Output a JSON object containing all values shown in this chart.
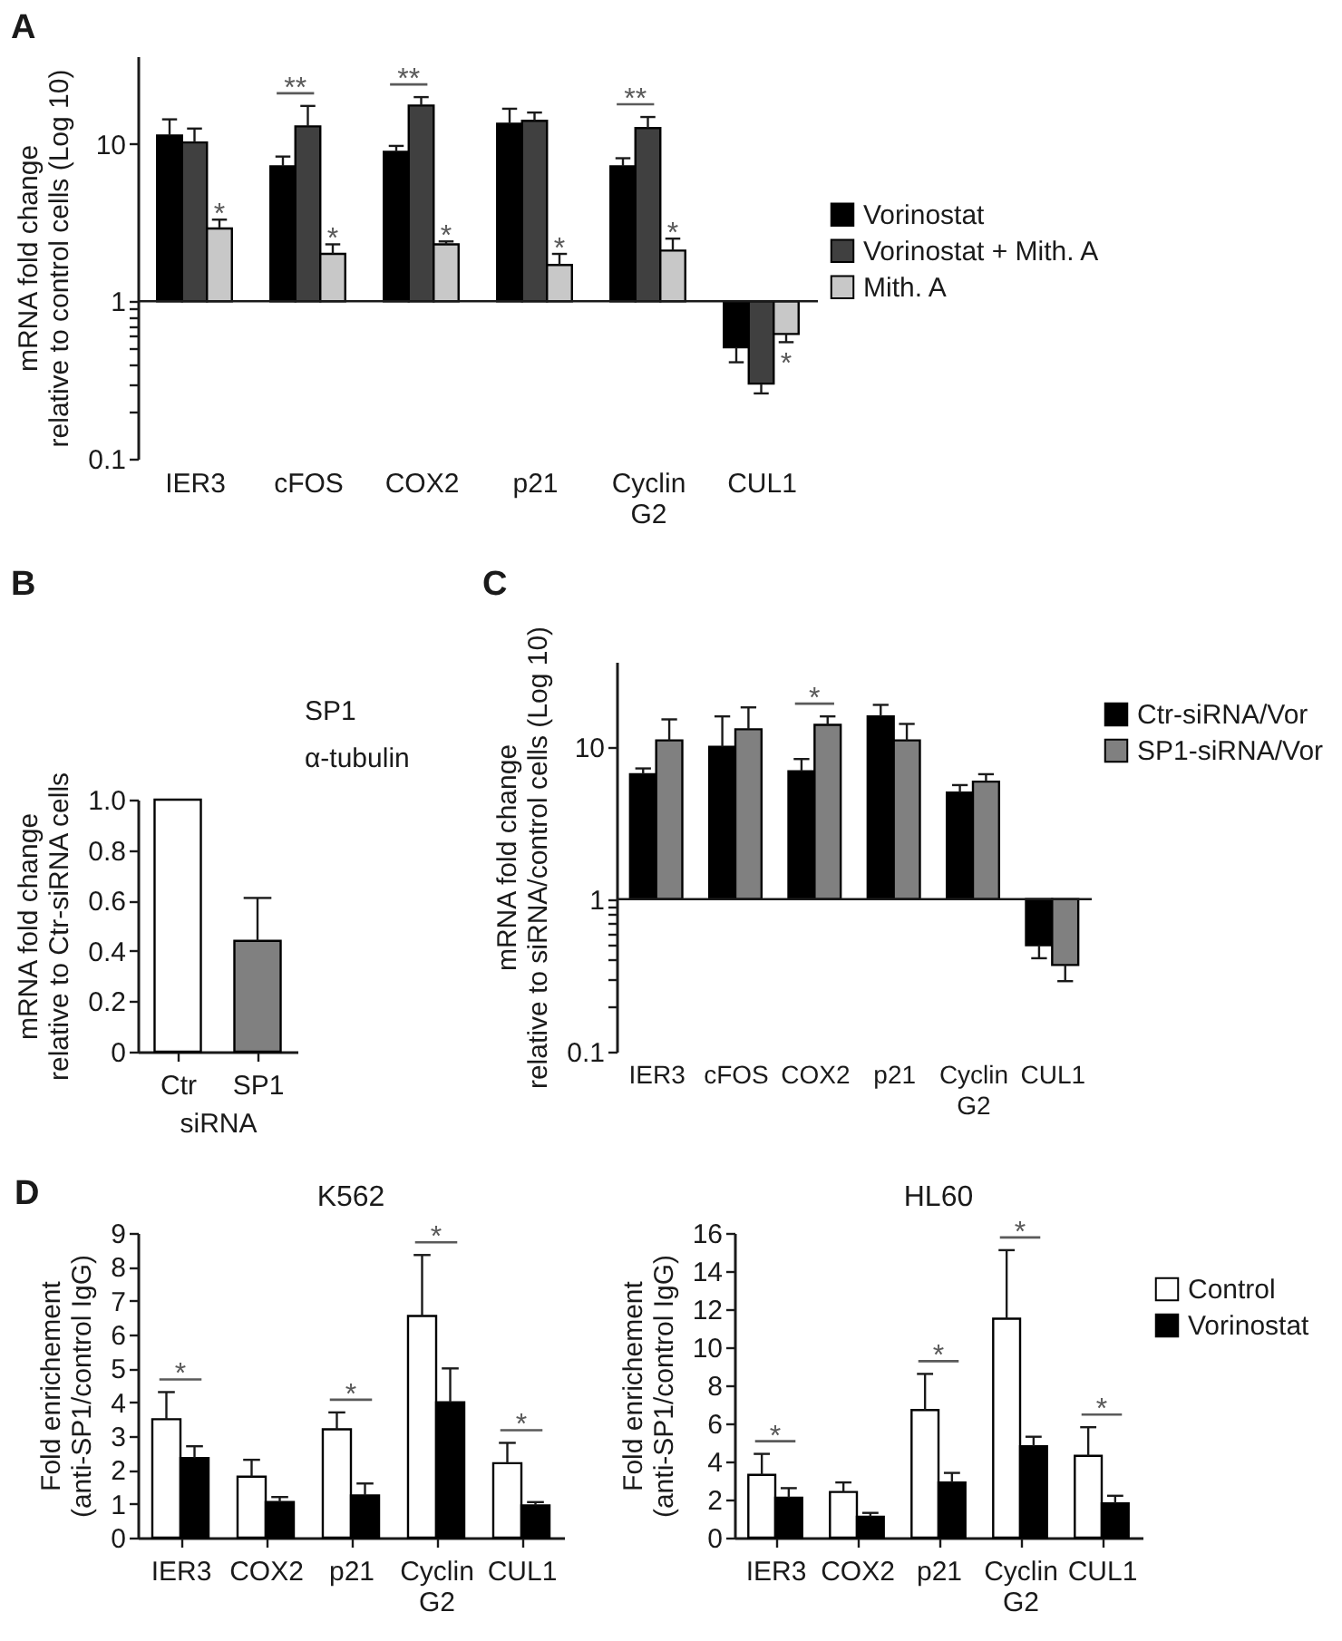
{
  "chart_data": [
    {
      "type": "bar",
      "categories": [
        "IER3",
        "cFOS",
        "COX2",
        "p21",
        "Cyclin G2",
        "CUL1"
      ],
      "ylabel": "mRNA fold change\nrelative to control cells (Log 10)",
      "log": true,
      "ylim": [
        0.1,
        36
      ],
      "yticks": [
        0.1,
        {
          "value": 0.2,
          "label": null
        },
        {
          "value": 0.3,
          "label": null
        },
        {
          "value": 0.4,
          "label": null
        },
        {
          "value": 0.5,
          "label": null
        },
        {
          "value": 0.6,
          "label": null
        },
        {
          "value": 0.7,
          "label": null
        },
        {
          "value": 0.8,
          "label": null
        },
        {
          "value": 0.9,
          "label": null
        },
        1,
        10
      ],
      "series": [
        {
          "name": "Vorinostat",
          "color": "#000000",
          "base": [
            1,
            1,
            1,
            1,
            1,
            1
          ],
          "values": [
            10.3,
            6.2,
            7.9,
            12.4,
            6.2,
            -0.49
          ],
          "errors": [
            [
              11.3,
              14.3
            ],
            [
              7.2,
              8.3
            ],
            [
              8.9,
              9.7
            ],
            [
              13.4,
              16.7
            ],
            [
              7.2,
              8.1
            ],
            [
              0.41,
              0.51
            ]
          ]
        },
        {
          "name": "Vorinostat + Mith. A",
          "color": "#404040",
          "base": [
            1,
            1,
            1,
            1,
            1,
            1
          ],
          "values": [
            9.2,
            11.9,
            16.5,
            13.0,
            11.6,
            -0.7
          ],
          "errors": [
            [
              10.2,
              12.5
            ],
            [
              12.9,
              17.4
            ],
            [
              17.5,
              19.8
            ],
            [
              14.0,
              15.8
            ],
            [
              12.6,
              14.8
            ],
            [
              0.26,
              0.3
            ]
          ]
        },
        {
          "name": "Mith. A",
          "color": "#c8c8c8",
          "base": [
            1,
            1,
            1,
            1,
            1,
            1
          ],
          "values": [
            1.9,
            1.0,
            1.3,
            0.7,
            1.1,
            -0.38
          ],
          "errors": [
            [
              2.9,
              3.3
            ],
            [
              2.0,
              2.3
            ],
            [
              2.3,
              2.4
            ],
            [
              1.7,
              2.0
            ],
            [
              2.1,
              2.5
            ],
            [
              0.55,
              0.62
            ]
          ]
        }
      ],
      "ref_lines": [
        {
          "axis": "y",
          "value": 1
        }
      ],
      "legend": "right",
      "annotations": [
        "A",
        "*",
        "**",
        "*",
        "**",
        "*",
        "*",
        "**",
        "*",
        "*"
      ]
    },
    {
      "type": "bar",
      "categories": [
        "Ctr",
        "SP1"
      ],
      "values": [
        1.0,
        0.44
      ],
      "colors": [
        "#ffffff",
        "#808080"
      ],
      "errors": [
        null,
        [
          0.44,
          0.61
        ]
      ],
      "ylim": [
        0,
        1
      ],
      "yticks": [
        0,
        0.2,
        0.4,
        0.6,
        0.8,
        {
          "value": 1,
          "label": "1.0"
        }
      ],
      "ylabel": "mRNA fold change\nrelative to Ctr-siRNA cells",
      "xlabel": "siRNA",
      "annotations": [
        "B",
        "SP1",
        "α-tubulin"
      ]
    },
    {
      "type": "bar",
      "categories": [
        "IER3",
        "cFOS",
        "COX2",
        "p21",
        "Cyclin G2",
        "CUL1"
      ],
      "ylabel": "mRNA fold change\nrelative to siRNA/control cells (Log 10)",
      "log": true,
      "ylim": [
        0.1,
        36
      ],
      "yticks": [
        0.1,
        {
          "value": 0.2,
          "label": null
        },
        {
          "value": 0.3,
          "label": null
        },
        {
          "value": 0.4,
          "label": null
        },
        {
          "value": 0.5,
          "label": null
        },
        {
          "value": 0.6,
          "label": null
        },
        {
          "value": 0.7,
          "label": null
        },
        {
          "value": 0.8,
          "label": null
        },
        {
          "value": 0.9,
          "label": null
        },
        1,
        10
      ],
      "series": [
        {
          "name": "Ctr-siRNA/Vor",
          "color": "#000000",
          "base": [
            1,
            1,
            1,
            1,
            1,
            1
          ],
          "values": [
            5.6,
            9.0,
            5.9,
            14.8,
            4.0,
            -0.5
          ],
          "errors": [
            [
              6.6,
              7.2
            ],
            [
              10.0,
              15.8
            ],
            [
              6.9,
              8.3
            ],
            [
              15.8,
              18.8
            ],
            [
              5.0,
              5.6
            ],
            [
              0.41,
              0.5
            ]
          ]
        },
        {
          "name": "SP1-siRNA/Vor",
          "color": "#808080",
          "base": [
            1,
            1,
            1,
            1,
            1,
            1
          ],
          "values": [
            10.0,
            12.0,
            12.9,
            10.0,
            4.9,
            -0.63
          ],
          "errors": [
            [
              11.0,
              15.1
            ],
            [
              13.0,
              18.1
            ],
            [
              13.9,
              15.8
            ],
            [
              11.0,
              14.1
            ],
            [
              5.9,
              6.6
            ],
            [
              0.29,
              0.37
            ]
          ]
        }
      ],
      "ref_lines": [
        {
          "axis": "y",
          "value": 1
        }
      ],
      "legend": "right",
      "annotations": [
        "C",
        "*"
      ]
    },
    {
      "type": "bar",
      "title": "K562",
      "categories": [
        "IER3",
        "COX2",
        "p21",
        "Cyclin G2",
        "CUL1"
      ],
      "ylabel": "Fold enrichement\n(anti-SP1/control IgG)",
      "ylim": [
        0,
        9
      ],
      "yticks": [
        0,
        1,
        2,
        3,
        4,
        5,
        6,
        7,
        8,
        9
      ],
      "series": [
        {
          "color": "#ffffff",
          "values": [
            3.5,
            1.8,
            3.2,
            6.55,
            2.2
          ],
          "errors": [
            [
              3.5,
              4.3
            ],
            [
              1.8,
              2.3
            ],
            [
              3.2,
              3.7
            ],
            [
              6.55,
              8.35
            ],
            [
              2.2,
              2.8
            ]
          ]
        },
        {
          "color": "#000000",
          "values": [
            2.35,
            1.05,
            1.25,
            4.0,
            0.95
          ],
          "errors": [
            [
              2.35,
              2.7
            ],
            [
              1.05,
              1.2
            ],
            [
              1.25,
              1.6
            ],
            [
              4.0,
              5.0
            ],
            [
              0.95,
              1.05
            ]
          ]
        }
      ],
      "annotations": [
        "D",
        "*",
        "*",
        "*",
        "*"
      ]
    },
    {
      "type": "bar",
      "title": "HL60",
      "categories": [
        "IER3",
        "COX2",
        "p21",
        "Cyclin G2",
        "CUL1"
      ],
      "ylabel": "Fold enrichement\n(anti-SP1/control IgG)",
      "ylim": [
        0,
        16
      ],
      "yticks": [
        0,
        2,
        4,
        6,
        8,
        10,
        12,
        14,
        16
      ],
      "series": [
        {
          "name": "Control",
          "color": "#ffffff",
          "values": [
            3.3,
            2.4,
            6.7,
            11.5,
            4.3
          ],
          "errors": [
            [
              3.3,
              4.4
            ],
            [
              2.4,
              2.9
            ],
            [
              6.7,
              8.6
            ],
            [
              11.5,
              15.1
            ],
            [
              4.3,
              5.8
            ]
          ]
        },
        {
          "name": "Vorinostat",
          "color": "#000000",
          "values": [
            2.1,
            1.1,
            2.9,
            4.8,
            1.8
          ],
          "errors": [
            [
              2.1,
              2.6
            ],
            [
              1.1,
              1.3
            ],
            [
              2.9,
              3.4
            ],
            [
              4.8,
              5.3
            ],
            [
              1.8,
              2.2
            ]
          ]
        }
      ],
      "legend": "right",
      "annotations": [
        "*",
        "*",
        "*",
        "*"
      ]
    }
  ]
}
